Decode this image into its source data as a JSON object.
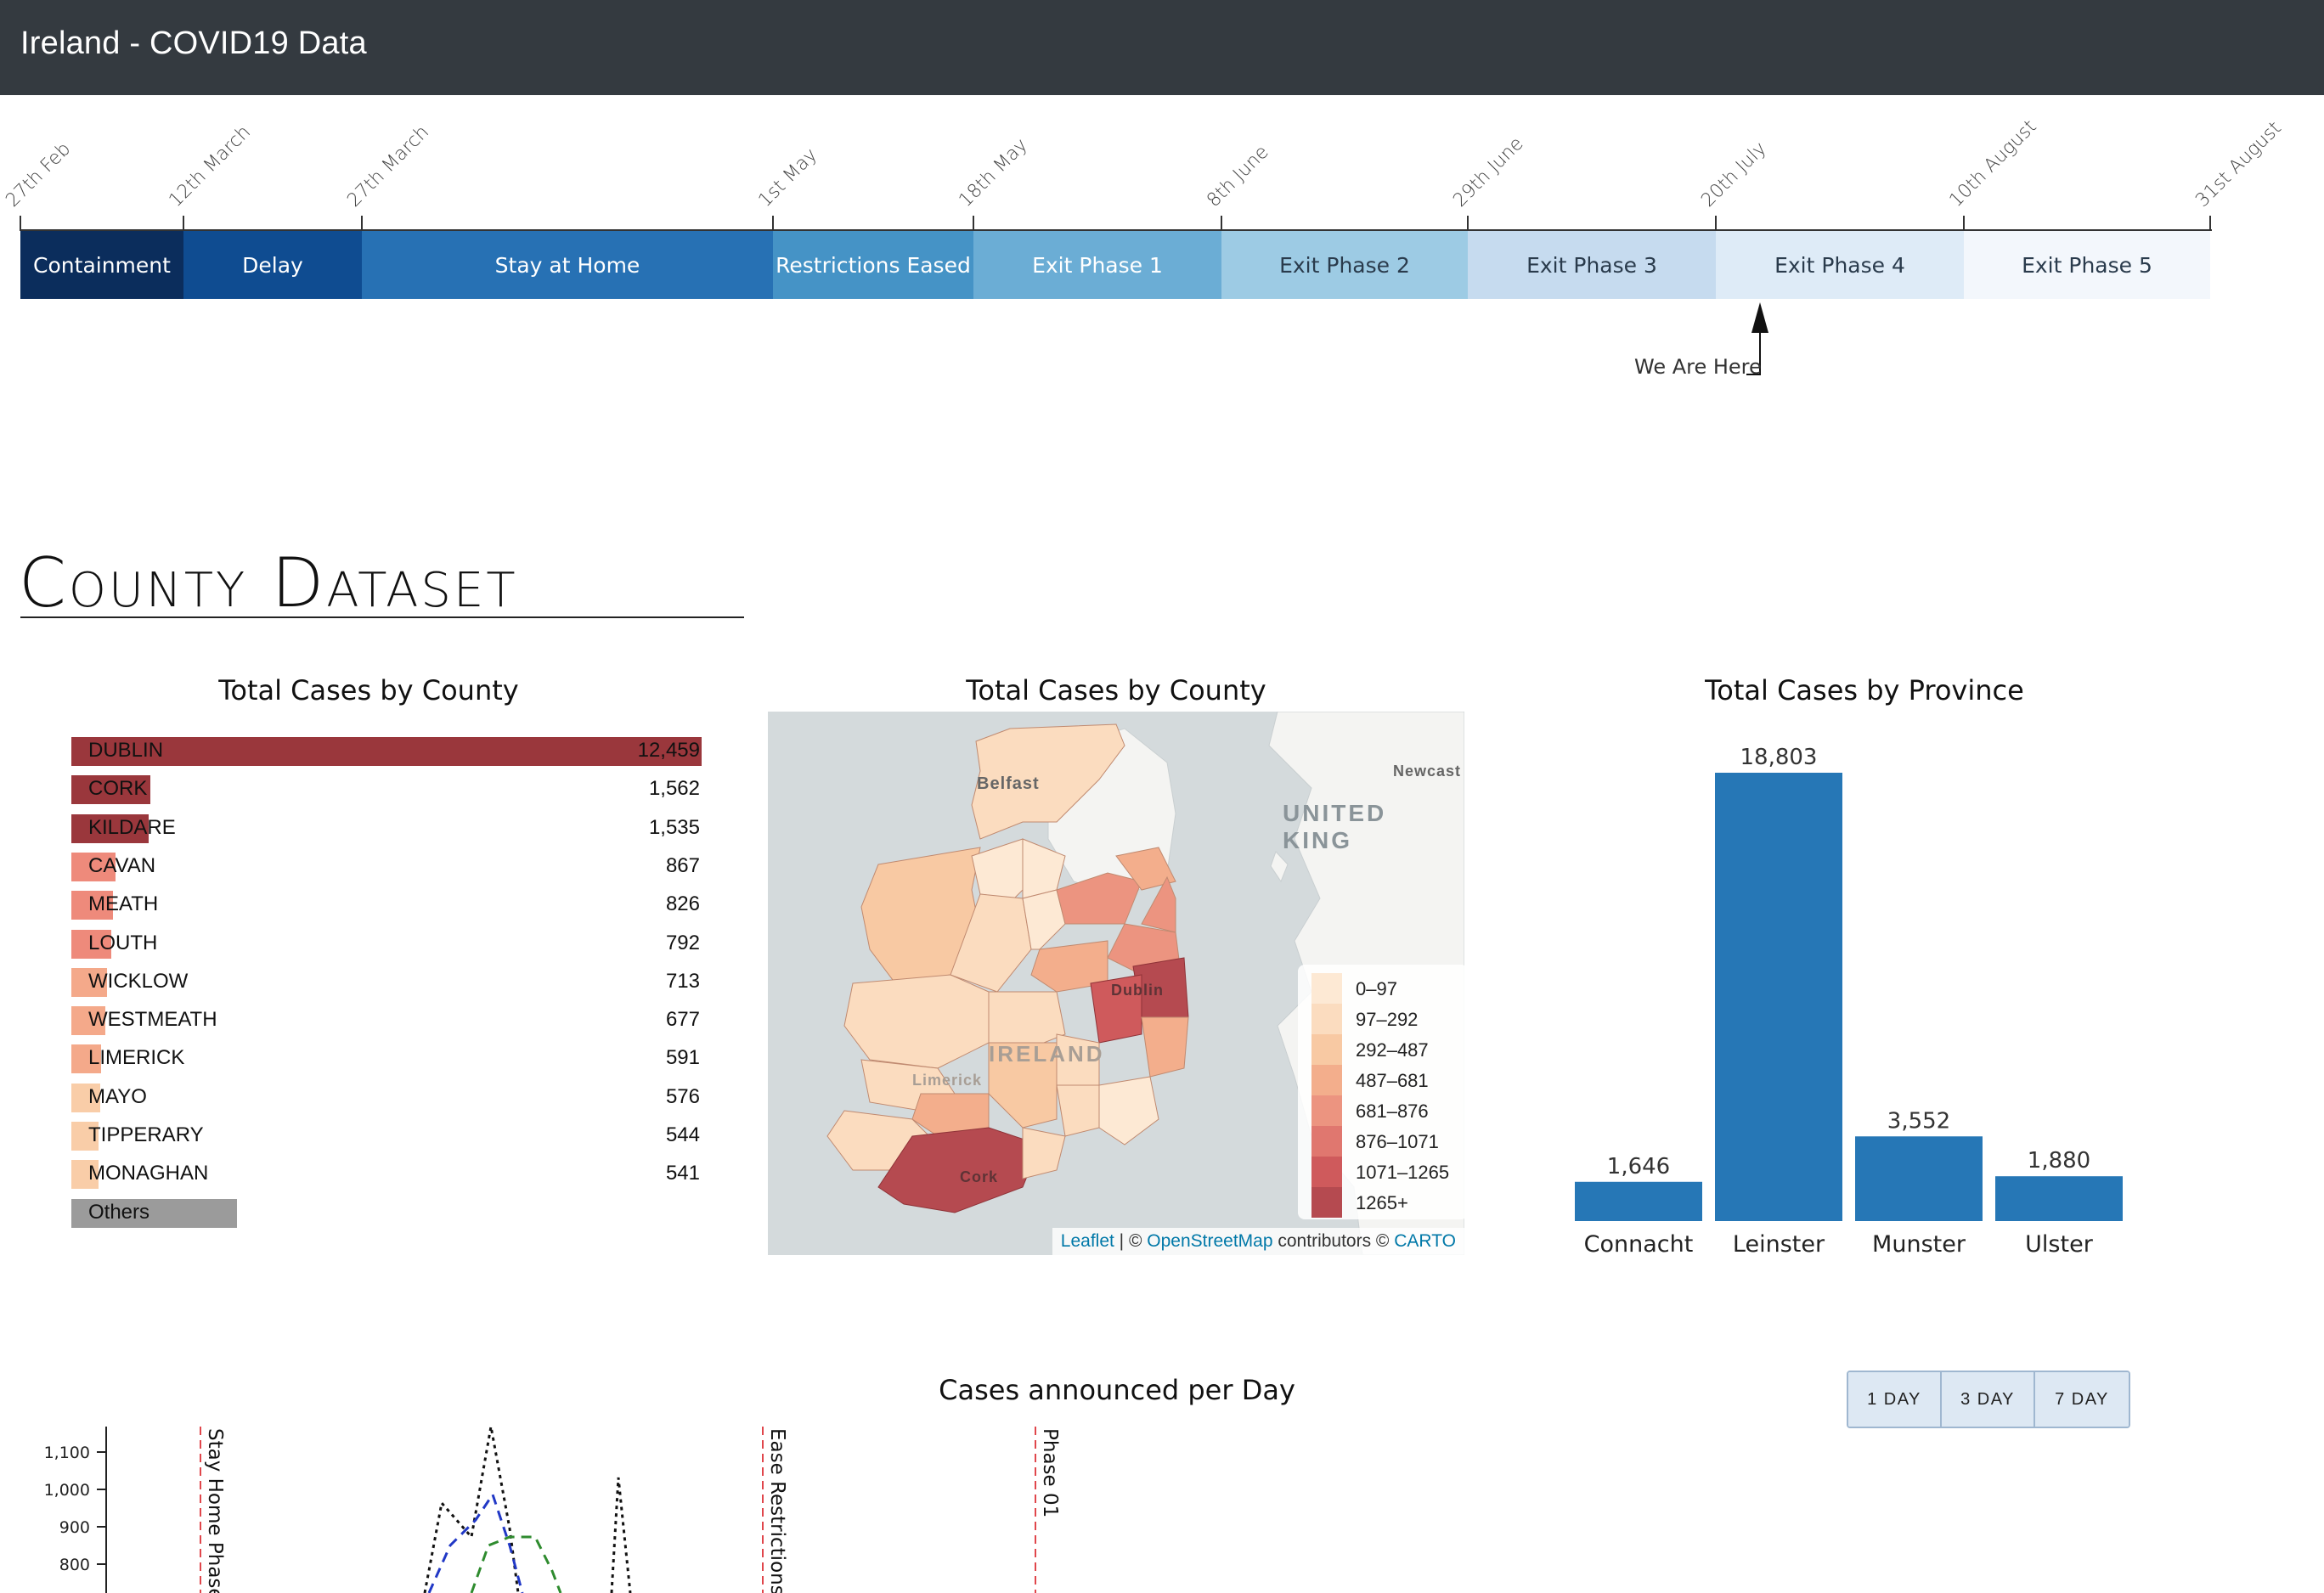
{
  "header": {
    "title": "Ireland - COVID19 Data"
  },
  "timeline": {
    "ticks": [
      "27th Feb",
      "12th March",
      "27th March",
      "1st May",
      "18th May",
      "8th June",
      "29th June",
      "20th July",
      "10th August",
      "31st August"
    ],
    "phases": [
      {
        "label": "Containment",
        "color": "#0b2d5c",
        "text_color": "#ffffff"
      },
      {
        "label": "Delay",
        "color": "#0f4c91",
        "text_color": "#ffffff"
      },
      {
        "label": "Stay at Home",
        "color": "#2771b4",
        "text_color": "#ffffff"
      },
      {
        "label": "Restrictions Eased",
        "color": "#4593c6",
        "text_color": "#ffffff"
      },
      {
        "label": "Exit Phase 1",
        "color": "#6badd5",
        "text_color": "#ffffff"
      },
      {
        "label": "Exit Phase 2",
        "color": "#9dcbe4",
        "text_color": "#2a3b4c"
      },
      {
        "label": "Exit Phase 3",
        "color": "#c6dbef",
        "text_color": "#2a3b4c"
      },
      {
        "label": "Exit Phase 4",
        "color": "#deebf7",
        "text_color": "#2a3b4c"
      },
      {
        "label": "Exit Phase 5",
        "color": "#f3f7fc",
        "text_color": "#2a3b4c"
      }
    ],
    "marker_label": "We Are Here"
  },
  "section": {
    "title": "County Dataset"
  },
  "county_bars": {
    "title": "Total Cases by County",
    "rows": [
      {
        "name": "DUBLIN",
        "value": "12,459",
        "num": 12459,
        "color": "#9a373c"
      },
      {
        "name": "CORK",
        "value": "1,562",
        "num": 1562,
        "color": "#9a373c"
      },
      {
        "name": "KILDARE",
        "value": "1,535",
        "num": 1535,
        "color": "#9a373c"
      },
      {
        "name": "CAVAN",
        "value": "867",
        "num": 867,
        "color": "#ee8a7b"
      },
      {
        "name": "MEATH",
        "value": "826",
        "num": 826,
        "color": "#ee8a7b"
      },
      {
        "name": "LOUTH",
        "value": "792",
        "num": 792,
        "color": "#ee8a7b"
      },
      {
        "name": "WICKLOW",
        "value": "713",
        "num": 713,
        "color": "#f4a98a"
      },
      {
        "name": "WESTMEATH",
        "value": "677",
        "num": 677,
        "color": "#f4a98a"
      },
      {
        "name": "LIMERICK",
        "value": "591",
        "num": 591,
        "color": "#f4a98a"
      },
      {
        "name": "MAYO",
        "value": "576",
        "num": 576,
        "color": "#f9cda8"
      },
      {
        "name": "TIPPERARY",
        "value": "544",
        "num": 544,
        "color": "#f9cda8"
      },
      {
        "name": "MONAGHAN",
        "value": "541",
        "num": 541,
        "color": "#f9cda8"
      },
      {
        "name": "Others",
        "value": "",
        "num": 3280,
        "color": "#9b9b9b"
      }
    ]
  },
  "map": {
    "title": "Total Cases by County",
    "labels": {
      "belfast": "Belfast",
      "newcastle": "Newcast",
      "uk": "UNITED KING",
      "ireland": "IRELAND",
      "dublin": "Dublin",
      "cork": "Cork",
      "limerick": "Limerick"
    },
    "legend": [
      {
        "label": "0–97",
        "color": "#fde9d4"
      },
      {
        "label": "97–292",
        "color": "#fbdcbf"
      },
      {
        "label": "292–487",
        "color": "#f8c9a3"
      },
      {
        "label": "487–681",
        "color": "#f3ae8c"
      },
      {
        "label": "681–876",
        "color": "#ec9480"
      },
      {
        "label": "876–1071",
        "color": "#e0776f"
      },
      {
        "label": "1071–1265",
        "color": "#cf5a5c"
      },
      {
        "label": "1265+",
        "color": "#b54a50"
      }
    ],
    "attribution": {
      "leaflet": "Leaflet",
      "sep1": " | © ",
      "osm": "OpenStreetMap",
      "mid": " contributors © ",
      "carto": "CARTO"
    }
  },
  "chart_data": [
    {
      "type": "bar",
      "title": "Total Cases by Province",
      "categories": [
        "Connacht",
        "Leinster",
        "Munster",
        "Ulster"
      ],
      "values": [
        1646,
        18803,
        3552,
        1880
      ],
      "value_labels": [
        "1,646",
        "18,803",
        "3,552",
        "1,880"
      ],
      "color": "#2677b6"
    },
    {
      "type": "line",
      "title": "Cases announced per Day",
      "y_ticks": [
        "1,100",
        "1,000",
        "900",
        "800"
      ],
      "annotations": [
        "Stay Home Phase",
        "Ease Restrictions",
        "Phase 01"
      ]
    }
  ],
  "daily": {
    "title": "Cases announced per Day",
    "buttons": [
      "1 DAY",
      "3 DAY",
      "7 DAY"
    ]
  }
}
